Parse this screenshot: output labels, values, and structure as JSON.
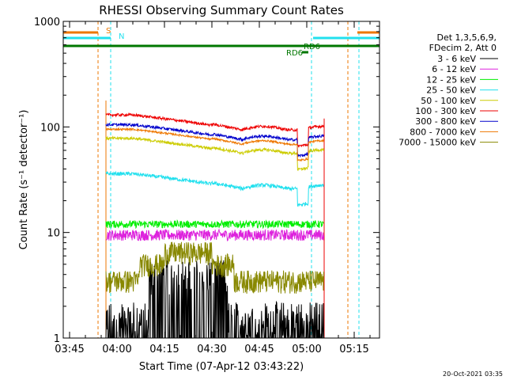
{
  "chart_data": {
    "type": "line",
    "title": "RHESSI Observing Summary Count Rates",
    "xlabel": "Start Time (07-Apr-12 03:43:22)",
    "ylabel": "Count Rate (s⁻¹ detector⁻¹)",
    "y_scale": "log",
    "ylim": [
      1,
      1000
    ],
    "xlim_minutes": [
      -2,
      98
    ],
    "x_ticks": [
      {
        "label": "03:45",
        "minute": 0
      },
      {
        "label": "04:00",
        "minute": 15
      },
      {
        "label": "04:15",
        "minute": 30
      },
      {
        "label": "04:30",
        "minute": 45
      },
      {
        "label": "04:45",
        "minute": 60
      },
      {
        "label": "05:00",
        "minute": 75
      },
      {
        "label": "05:15",
        "minute": 90
      }
    ],
    "y_ticks": [
      "1",
      "10",
      "100",
      "1000"
    ],
    "grid": false,
    "legend_header": [
      "Det 1,3,5,6,9,",
      "FDecim 2, Att 0"
    ],
    "series": [
      {
        "name": "3 - 6 keV",
        "color": "#000000",
        "level": 1.5,
        "noise": 0.45,
        "kind": "bursty"
      },
      {
        "name": "6 - 12 keV",
        "color": "#dd22dd",
        "level": 9.5,
        "noise": 0.12
      },
      {
        "name": "12 - 25 keV",
        "color": "#00ee00",
        "level": 12,
        "noise": 0.08
      },
      {
        "name": "25 - 50 keV",
        "color": "#22e0ee",
        "level": 36,
        "noise": 0.04
      },
      {
        "name": "50 - 100 keV",
        "color": "#cccc00",
        "level": 78,
        "noise": 0.03
      },
      {
        "name": "100 - 300 keV",
        "color": "#ee0000",
        "level": 130,
        "noise": 0.03
      },
      {
        "name": "300 - 800 keV",
        "color": "#0000cc",
        "level": 105,
        "noise": 0.03
      },
      {
        "name": "800 - 7000 keV",
        "color": "#ee7700",
        "level": 95,
        "noise": 0.02
      },
      {
        "name": "7000 - 15000 keV",
        "color": "#888800",
        "level": 4,
        "noise": 0.25,
        "kind": "stepped"
      }
    ],
    "flags": [
      {
        "label": "S",
        "color": "#ee7700"
      },
      {
        "label": "N",
        "color": "#22e0ee"
      },
      {
        "label": "RD6",
        "color": "#007700"
      },
      {
        "label": "RD6",
        "color": "#007700"
      }
    ],
    "data_interval_minutes": [
      11.5,
      80.5
    ],
    "day_night_lines": [
      {
        "minute": 9,
        "color": "#ee7700"
      },
      {
        "minute": 13,
        "color": "#22e0ee"
      },
      {
        "minute": 88,
        "color": "#ee7700"
      },
      {
        "minute": 91.5,
        "color": "#22e0ee"
      },
      {
        "minute": 76.5,
        "color": "#22e0ee"
      }
    ],
    "footer_date": "20-Oct-2021 03:35"
  }
}
